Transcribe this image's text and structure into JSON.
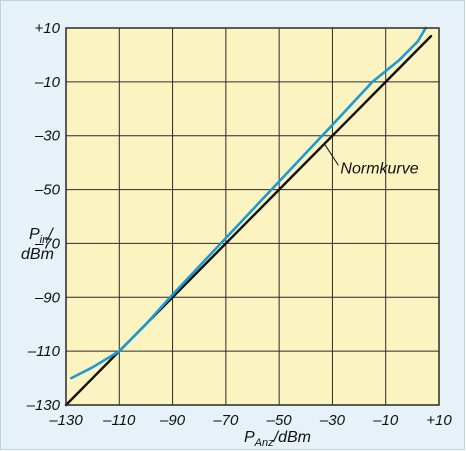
{
  "chart_data": {
    "type": "line",
    "xlabel": {
      "main": "P",
      "sub": "Anz",
      "unit": "/dBm"
    },
    "ylabel": {
      "main": "P",
      "sub": "in",
      "line1_suffix": "/",
      "line2": "dBm"
    },
    "xlim": [
      -130,
      10
    ],
    "ylim": [
      -130,
      10
    ],
    "x_tick_labels": [
      "–130",
      "–110",
      "–90",
      "–70",
      "–50",
      "–30",
      "–10",
      "+10"
    ],
    "x_tick_values": [
      -130,
      -110,
      -90,
      -70,
      -50,
      -30,
      -10,
      10
    ],
    "y_tick_labels": [
      "+10",
      "–10",
      "–30",
      "–50",
      "–70",
      "–90",
      "–110",
      "–130"
    ],
    "y_tick_values": [
      10,
      -10,
      -30,
      -50,
      -70,
      -90,
      -110,
      -130
    ],
    "grid": true,
    "annotation": {
      "text": "Normkurve",
      "point": [
        -33,
        -33
      ],
      "text_at": [
        -27,
        -44
      ]
    },
    "series": [
      {
        "name": "",
        "color": "#1a9ad6",
        "x": [
          -128,
          -120,
          -110,
          -100,
          -90,
          -70,
          -50,
          -30,
          -15,
          -5,
          2,
          5
        ],
        "y": [
          -120,
          -116,
          -110,
          -100,
          -89,
          -68,
          -47,
          -26,
          -10,
          -2,
          5,
          10
        ]
      },
      {
        "name": "Normkurve",
        "color": "#111111",
        "x": [
          -130,
          7
        ],
        "y": [
          -130,
          7
        ]
      }
    ],
    "colors": {
      "plot_bg": "#fbf3c0",
      "grid": "#2a2a2a",
      "frame": "#2a2a2a",
      "panel_bg": "#e6f1f8"
    }
  }
}
